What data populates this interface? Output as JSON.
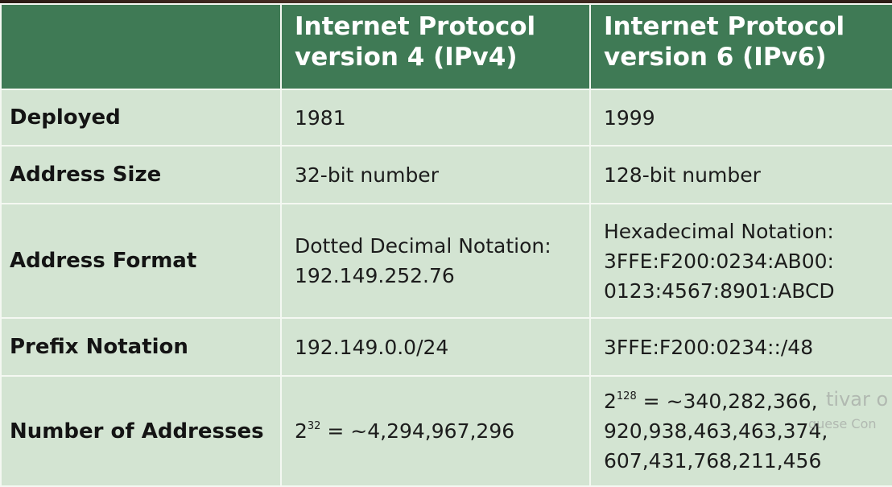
{
  "table": {
    "headers": [
      "",
      "Internet Protocol version 4 (IPv4)",
      "Internet Protocol version 6 (IPv6)"
    ],
    "header_lines": {
      "ipv4": [
        "Internet Protocol",
        "version 4 (IPv4)"
      ],
      "ipv6": [
        "Internet Protocol",
        "version 6 (IPv6)"
      ]
    },
    "rows": [
      {
        "label": "Deployed",
        "ipv4": [
          "1981"
        ],
        "ipv6": [
          "1999"
        ]
      },
      {
        "label": "Address Size",
        "ipv4": [
          "32-bit number"
        ],
        "ipv6": [
          "128-bit number"
        ]
      },
      {
        "label": "Address Format",
        "ipv4": [
          "Dotted Decimal Notation:",
          "192.149.252.76"
        ],
        "ipv6": [
          "Hexadecimal Notation:",
          "3FFE:F200:0234:AB00:",
          "0123:4567:8901:ABCD"
        ]
      },
      {
        "label": "Prefix Notation",
        "ipv4": [
          "192.149.0.0/24"
        ],
        "ipv6": [
          "3FFE:F200:0234::/48"
        ]
      },
      {
        "label": "Number of Addresses",
        "ipv4_base": "2",
        "ipv4_exp": "32",
        "ipv4_rest": " = ~4,294,967,296",
        "ipv6_base": "2",
        "ipv6_exp": "128",
        "ipv6_rest": " = ~340,282,366,",
        "ipv6_more": [
          "920,938,463,463,374,",
          "607,431,768,211,456"
        ]
      }
    ]
  },
  "watermark": {
    "line1": "tivar o",
    "line2": "guese Con"
  },
  "colors": {
    "header_bg": "#3f7a55",
    "cell_bg": "#d3e4d2",
    "border": "#f4f8f2"
  }
}
